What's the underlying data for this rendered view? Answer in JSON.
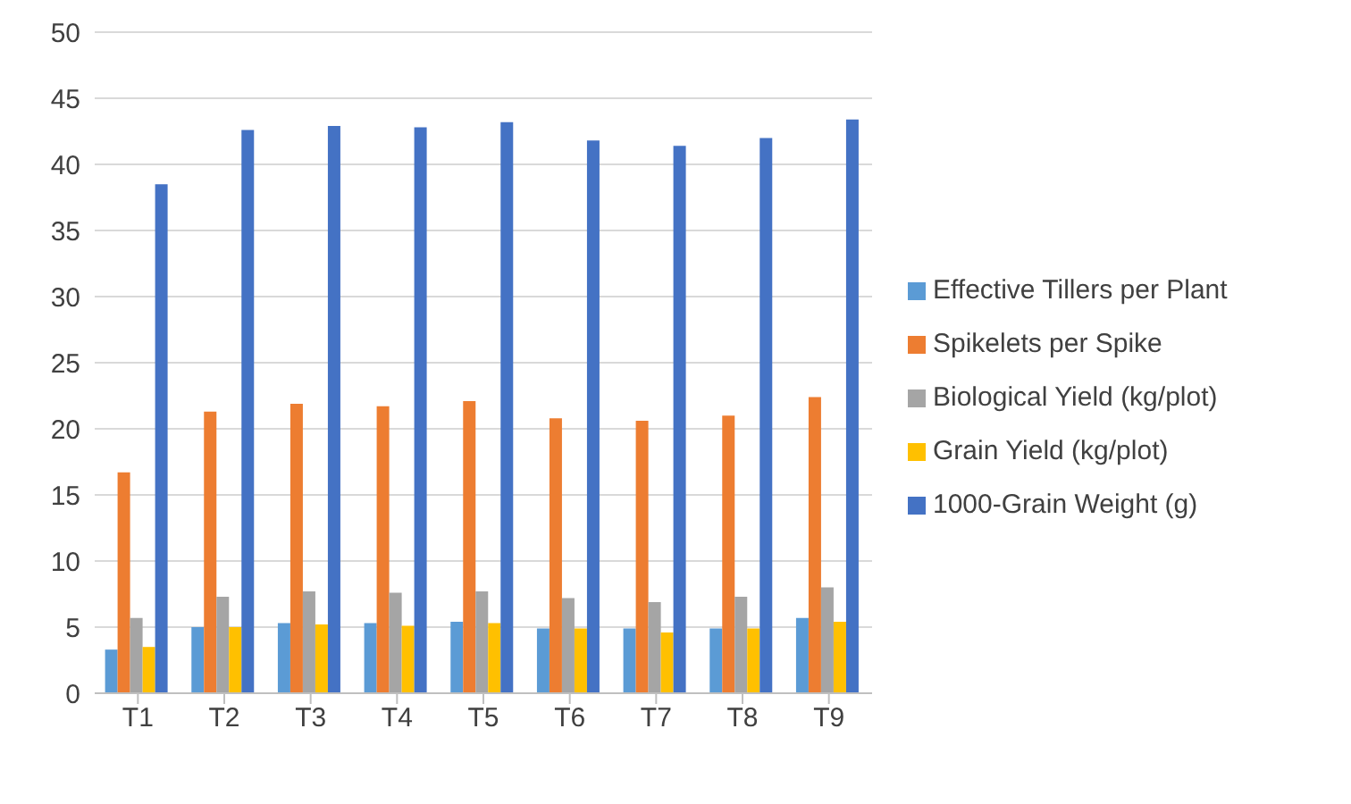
{
  "chart_data": {
    "type": "bar",
    "categories": [
      "T1",
      "T2",
      "T3",
      "T4",
      "T5",
      "T6",
      "T7",
      "T8",
      "T9"
    ],
    "series": [
      {
        "name": "Effective Tillers per Plant",
        "color": "#5b9bd5",
        "values": [
          3.3,
          5.0,
          5.3,
          5.3,
          5.4,
          4.9,
          4.9,
          4.9,
          5.7
        ]
      },
      {
        "name": "Spikelets per Spike",
        "color": "#ed7d31",
        "values": [
          16.7,
          21.3,
          21.9,
          21.7,
          22.1,
          20.8,
          20.6,
          21.0,
          22.4
        ]
      },
      {
        "name": "Biological Yield (kg/plot)",
        "color": "#a5a5a5",
        "values": [
          5.7,
          7.3,
          7.7,
          7.6,
          7.7,
          7.2,
          6.9,
          7.3,
          8.0
        ]
      },
      {
        "name": "Grain Yield (kg/plot)",
        "color": "#ffc000",
        "values": [
          3.5,
          5.0,
          5.2,
          5.1,
          5.3,
          4.9,
          4.6,
          4.9,
          5.4
        ]
      },
      {
        "name": "1000-Grain Weight (g)",
        "color": "#4472c4",
        "values": [
          38.5,
          42.6,
          42.9,
          42.8,
          43.2,
          41.8,
          41.4,
          42.0,
          43.4
        ]
      }
    ],
    "ylim": [
      0,
      50
    ],
    "yticks": [
      0,
      5,
      10,
      15,
      20,
      25,
      30,
      35,
      40,
      45,
      50
    ],
    "grid": "y",
    "legend": "right"
  }
}
